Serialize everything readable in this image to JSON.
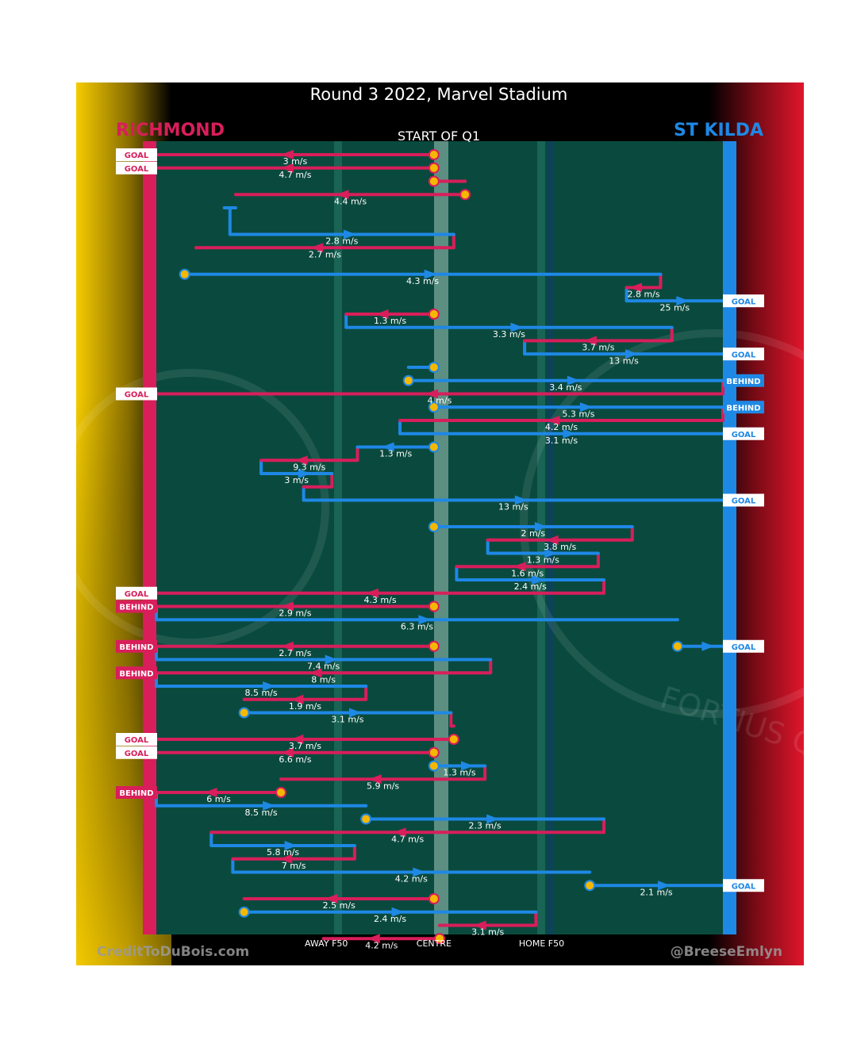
{
  "title": "Round 3 2022, Marvel Stadium",
  "subtitle": "START OF Q1",
  "teams": {
    "left": {
      "name": "RICHMOND",
      "color": "#d81e5b"
    },
    "right": {
      "name": "ST KILDA",
      "color": "#1e88e5"
    }
  },
  "footer": {
    "left_credit": "CreditToDuBois.com",
    "right_credit": "@BreeseEmlyn",
    "x_labels": [
      "AWAY F50",
      "CENTRE",
      "HOME F50"
    ]
  },
  "watermark_text": "FORTIUS QUO",
  "colors": {
    "field": "#0a4a3e",
    "ball": "#f5b800",
    "gold": "#f2c700",
    "red": "#e0162b"
  },
  "chart_data": {
    "type": "chain-timeline",
    "title": "Round 3 2022, Marvel Stadium",
    "subtitle": "START OF Q1",
    "xlabel": "",
    "ylabel": "",
    "x_ticks": [
      {
        "label": "AWAY F50",
        "x": 0.3
      },
      {
        "label": "CENTRE",
        "x": 0.49
      },
      {
        "label": "HOME F50",
        "x": 0.68
      }
    ],
    "chains": [
      {
        "team": "R",
        "row": 0,
        "x1": 0.49,
        "x2": 0.0,
        "speed": "3 m/s",
        "start_ball": true,
        "outcome": "GOAL"
      },
      {
        "team": "R",
        "row": 1,
        "x1": 0.49,
        "x2": 0.0,
        "speed": "4.7 m/s",
        "start_ball": true,
        "outcome": "GOAL"
      },
      {
        "team": "R",
        "row": 2,
        "x1": 0.49,
        "x2": 0.545,
        "speed": "",
        "start_ball": true,
        "outcome": ""
      },
      {
        "team": "R",
        "row": 3,
        "x1": 0.545,
        "x2": 0.14,
        "speed": "4.4 m/s",
        "start_ball": true,
        "outcome": ""
      },
      {
        "team": "S",
        "row": 4,
        "x1": 0.12,
        "x2": 0.14,
        "speed": "",
        "start_ball": false,
        "outcome": ""
      },
      {
        "team": "S",
        "row": 6,
        "x1": 0.13,
        "x2": 0.525,
        "speed": "2.8 m/s",
        "start_ball": false,
        "outcome": ""
      },
      {
        "team": "R",
        "row": 7,
        "x1": 0.525,
        "x2": 0.07,
        "speed": "2.7 m/s",
        "start_ball": false,
        "outcome": ""
      },
      {
        "team": "S",
        "row": 9,
        "x1": 0.05,
        "x2": 0.89,
        "speed": "4.3 m/s",
        "start_ball": true,
        "outcome": ""
      },
      {
        "team": "R",
        "row": 10,
        "x1": 0.89,
        "x2": 0.83,
        "speed": "2.8 m/s",
        "start_ball": false,
        "outcome": ""
      },
      {
        "team": "S",
        "row": 11,
        "x1": 0.83,
        "x2": 1.0,
        "speed": "25 m/s",
        "start_ball": false,
        "outcome": "GOAL"
      },
      {
        "team": "R",
        "row": 12,
        "x1": 0.49,
        "x2": 0.335,
        "speed": "1.3 m/s",
        "start_ball": true,
        "outcome": ""
      },
      {
        "team": "S",
        "row": 13,
        "x1": 0.335,
        "x2": 0.91,
        "speed": "3.3 m/s",
        "start_ball": false,
        "outcome": ""
      },
      {
        "team": "R",
        "row": 14,
        "x1": 0.91,
        "x2": 0.65,
        "speed": "3.7 m/s",
        "start_ball": false,
        "outcome": ""
      },
      {
        "team": "S",
        "row": 15,
        "x1": 0.65,
        "x2": 1.0,
        "speed": "13 m/s",
        "start_ball": false,
        "outcome": "GOAL"
      },
      {
        "team": "S",
        "row": 16,
        "x1": 0.49,
        "x2": 0.445,
        "speed": "",
        "start_ball": true,
        "outcome": ""
      },
      {
        "team": "S",
        "row": 17,
        "x1": 0.445,
        "x2": 1.0,
        "speed": "3.4 m/s",
        "start_ball": true,
        "outcome": "BEHIND"
      },
      {
        "team": "R",
        "row": 18,
        "x1": 1.0,
        "x2": 0.0,
        "speed": "4 m/s",
        "start_ball": false,
        "outcome": "GOAL"
      },
      {
        "team": "S",
        "row": 19,
        "x1": 0.49,
        "x2": 1.0,
        "speed": "5.3 m/s",
        "start_ball": true,
        "outcome": "BEHIND"
      },
      {
        "team": "R",
        "row": 20,
        "x1": 1.0,
        "x2": 0.43,
        "speed": "4.2 m/s",
        "start_ball": false,
        "outcome": ""
      },
      {
        "team": "S",
        "row": 21,
        "x1": 0.43,
        "x2": 1.0,
        "speed": "3.1 m/s",
        "start_ball": false,
        "outcome": "GOAL"
      },
      {
        "team": "S",
        "row": 22,
        "x1": 0.49,
        "x2": 0.355,
        "speed": "1.3 m/s",
        "start_ball": true,
        "outcome": ""
      },
      {
        "team": "R",
        "row": 23,
        "x1": 0.355,
        "x2": 0.185,
        "speed": "9.3 m/s",
        "start_ball": false,
        "outcome": ""
      },
      {
        "team": "S",
        "row": 24,
        "x1": 0.185,
        "x2": 0.31,
        "speed": "3 m/s",
        "start_ball": false,
        "outcome": ""
      },
      {
        "team": "R",
        "row": 25,
        "x1": 0.31,
        "x2": 0.26,
        "speed": "",
        "start_ball": false,
        "outcome": ""
      },
      {
        "team": "S",
        "row": 26,
        "x1": 0.26,
        "x2": 1.0,
        "speed": "13 m/s",
        "start_ball": false,
        "outcome": "GOAL"
      },
      {
        "team": "S",
        "row": 28,
        "x1": 0.49,
        "x2": 0.84,
        "speed": "2 m/s",
        "start_ball": true,
        "outcome": ""
      },
      {
        "team": "R",
        "row": 29,
        "x1": 0.84,
        "x2": 0.585,
        "speed": "3.8 m/s",
        "start_ball": false,
        "outcome": ""
      },
      {
        "team": "S",
        "row": 30,
        "x1": 0.585,
        "x2": 0.78,
        "speed": "1.3 m/s",
        "start_ball": false,
        "outcome": ""
      },
      {
        "team": "R",
        "row": 31,
        "x1": 0.78,
        "x2": 0.53,
        "speed": "1.6 m/s",
        "start_ball": false,
        "outcome": ""
      },
      {
        "team": "S",
        "row": 32,
        "x1": 0.53,
        "x2": 0.79,
        "speed": "2.4 m/s",
        "start_ball": false,
        "outcome": ""
      },
      {
        "team": "R",
        "row": 33,
        "x1": 0.79,
        "x2": 0.0,
        "speed": "4.3 m/s",
        "start_ball": false,
        "outcome": "GOAL"
      },
      {
        "team": "R",
        "row": 34,
        "x1": 0.49,
        "x2": 0.0,
        "speed": "2.9 m/s",
        "start_ball": true,
        "outcome": "BEHIND"
      },
      {
        "team": "S",
        "row": 35,
        "x1": 0.0,
        "x2": 0.92,
        "speed": "6.3 m/s",
        "start_ball": false,
        "outcome": ""
      },
      {
        "team": "S",
        "row": 37,
        "x1": 0.92,
        "x2": 1.0,
        "speed": "",
        "start_ball": true,
        "outcome": "GOAL"
      },
      {
        "team": "R",
        "row": 37,
        "x1": 0.49,
        "x2": 0.0,
        "speed": "2.7 m/s",
        "start_ball": true,
        "outcome": "BEHIND"
      },
      {
        "team": "S",
        "row": 38,
        "x1": 0.0,
        "x2": 0.59,
        "speed": "7.4 m/s",
        "start_ball": false,
        "outcome": ""
      },
      {
        "team": "R",
        "row": 39,
        "x1": 0.59,
        "x2": 0.0,
        "speed": "8 m/s",
        "start_ball": false,
        "outcome": "BEHIND"
      },
      {
        "team": "S",
        "row": 40,
        "x1": 0.0,
        "x2": 0.37,
        "speed": "8.5 m/s",
        "start_ball": false,
        "outcome": ""
      },
      {
        "team": "R",
        "row": 41,
        "x1": 0.37,
        "x2": 0.155,
        "speed": "1.9 m/s",
        "start_ball": false,
        "outcome": ""
      },
      {
        "team": "S",
        "row": 42,
        "x1": 0.155,
        "x2": 0.52,
        "speed": "3.1 m/s",
        "start_ball": true,
        "outcome": ""
      },
      {
        "team": "R",
        "row": 43,
        "x1": 0.52,
        "x2": 0.525,
        "speed": "",
        "start_ball": false,
        "outcome": ""
      },
      {
        "team": "R",
        "row": 44,
        "x1": 0.525,
        "x2": 0.0,
        "speed": "3.7 m/s",
        "start_ball": true,
        "outcome": "GOAL"
      },
      {
        "team": "R",
        "row": 45,
        "x1": 0.49,
        "x2": 0.0,
        "speed": "6.6 m/s",
        "start_ball": true,
        "outcome": "GOAL"
      },
      {
        "team": "S",
        "row": 46,
        "x1": 0.49,
        "x2": 0.58,
        "speed": "1.3 m/s",
        "start_ball": true,
        "outcome": ""
      },
      {
        "team": "R",
        "row": 47,
        "x1": 0.58,
        "x2": 0.22,
        "speed": "5.9 m/s",
        "start_ball": false,
        "outcome": ""
      },
      {
        "team": "R",
        "row": 48,
        "x1": 0.22,
        "x2": 0.0,
        "speed": "6 m/s",
        "start_ball": true,
        "outcome": "BEHIND"
      },
      {
        "team": "S",
        "row": 49,
        "x1": 0.0,
        "x2": 0.37,
        "speed": "8.5 m/s",
        "start_ball": false,
        "outcome": ""
      },
      {
        "team": "S",
        "row": 50,
        "x1": 0.37,
        "x2": 0.79,
        "speed": "2.3 m/s",
        "start_ball": true,
        "outcome": ""
      },
      {
        "team": "R",
        "row": 51,
        "x1": 0.79,
        "x2": 0.097,
        "speed": "4.7 m/s",
        "start_ball": false,
        "outcome": ""
      },
      {
        "team": "S",
        "row": 52,
        "x1": 0.097,
        "x2": 0.35,
        "speed": "5.8 m/s",
        "start_ball": false,
        "outcome": ""
      },
      {
        "team": "R",
        "row": 53,
        "x1": 0.35,
        "x2": 0.135,
        "speed": "7 m/s",
        "start_ball": false,
        "outcome": ""
      },
      {
        "team": "S",
        "row": 54,
        "x1": 0.135,
        "x2": 0.765,
        "speed": "4.2 m/s",
        "start_ball": false,
        "outcome": ""
      },
      {
        "team": "S",
        "row": 55,
        "x1": 0.765,
        "x2": 1.0,
        "speed": "2.1 m/s",
        "start_ball": true,
        "outcome": "GOAL"
      },
      {
        "team": "R",
        "row": 56,
        "x1": 0.49,
        "x2": 0.155,
        "speed": "2.5 m/s",
        "start_ball": true,
        "outcome": ""
      },
      {
        "team": "S",
        "row": 57,
        "x1": 0.155,
        "x2": 0.67,
        "speed": "2.4 m/s",
        "start_ball": true,
        "outcome": ""
      },
      {
        "team": "R",
        "row": 58,
        "x1": 0.67,
        "x2": 0.5,
        "speed": "3.1 m/s",
        "start_ball": false,
        "outcome": ""
      },
      {
        "team": "R",
        "row": 59,
        "x1": 0.5,
        "x2": 0.295,
        "speed": "4.2 m/s",
        "start_ball": true,
        "outcome": ""
      }
    ]
  }
}
